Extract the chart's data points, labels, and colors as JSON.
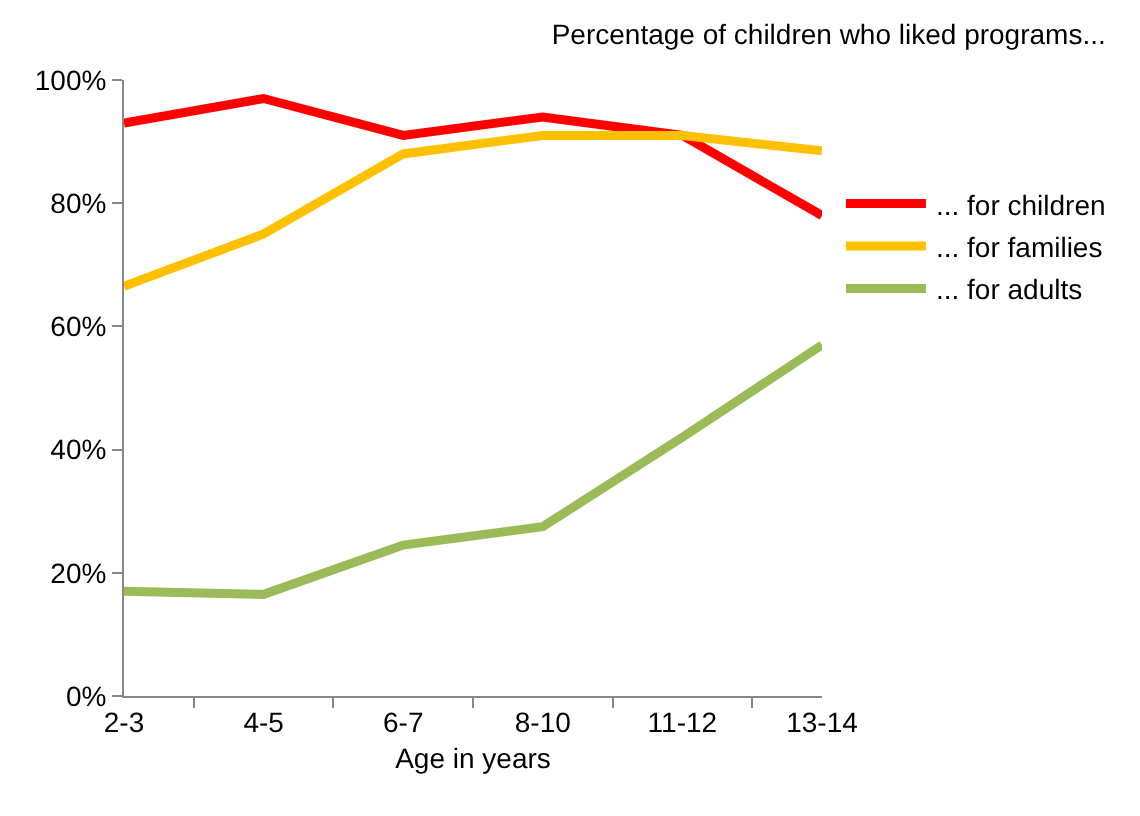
{
  "chart_data": {
    "type": "line",
    "title": "Percentage of children who liked programs...",
    "xlabel": "Age in years",
    "categories": [
      "2-3",
      "4-5",
      "6-7",
      "8-10",
      "11-12",
      "13-14"
    ],
    "series": [
      {
        "name": "... for children",
        "color": "#ff0000",
        "values": [
          93,
          97,
          91,
          94,
          91,
          78
        ]
      },
      {
        "name": "... for families",
        "color": "#ffc000",
        "values": [
          66.5,
          75,
          88,
          91,
          91,
          88.5
        ]
      },
      {
        "name": "... for adults",
        "color": "#9bbb59",
        "values": [
          17,
          16.5,
          24.5,
          27.5,
          42,
          57
        ]
      }
    ],
    "ylim": [
      0,
      100
    ],
    "yticks": [
      {
        "value": 0,
        "label": "0%"
      },
      {
        "value": 20,
        "label": "20%"
      },
      {
        "value": 40,
        "label": "40%"
      },
      {
        "value": 60,
        "label": "60%"
      },
      {
        "value": 80,
        "label": "80%"
      },
      {
        "value": 100,
        "label": "100%"
      }
    ],
    "grid": false,
    "legend": "right",
    "marker": "none",
    "line_style": "solid"
  }
}
